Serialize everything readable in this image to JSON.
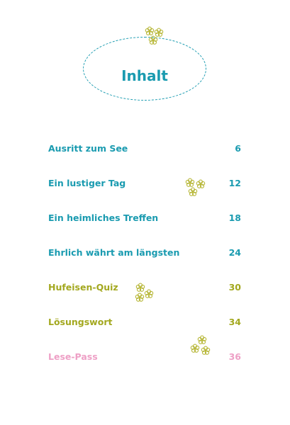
{
  "page": {
    "title": "Inhalt"
  },
  "colors": {
    "teal": "#1a9bb0",
    "olive": "#a3a81f",
    "pink": "#eea0c6",
    "flower": "#b6b635"
  },
  "decorations": {
    "flower_icon": "flower-cluster-icon"
  },
  "toc": [
    {
      "title": "Ausritt zum See",
      "page": "6",
      "color": "#1a9bb0"
    },
    {
      "title": "Ein lustiger Tag",
      "page": "12",
      "color": "#1a9bb0"
    },
    {
      "title": "Ein heimliches Treffen",
      "page": "18",
      "color": "#1a9bb0"
    },
    {
      "title": "Ehrlich währt am längsten",
      "page": "24",
      "color": "#1a9bb0"
    },
    {
      "title": "Hufeisen-Quiz",
      "page": "30",
      "color": "#a3a81f"
    },
    {
      "title": "Lösungswort",
      "page": "34",
      "color": "#a3a81f"
    },
    {
      "title": "Lese-Pass",
      "page": "36",
      "color": "#eea0c6"
    }
  ]
}
